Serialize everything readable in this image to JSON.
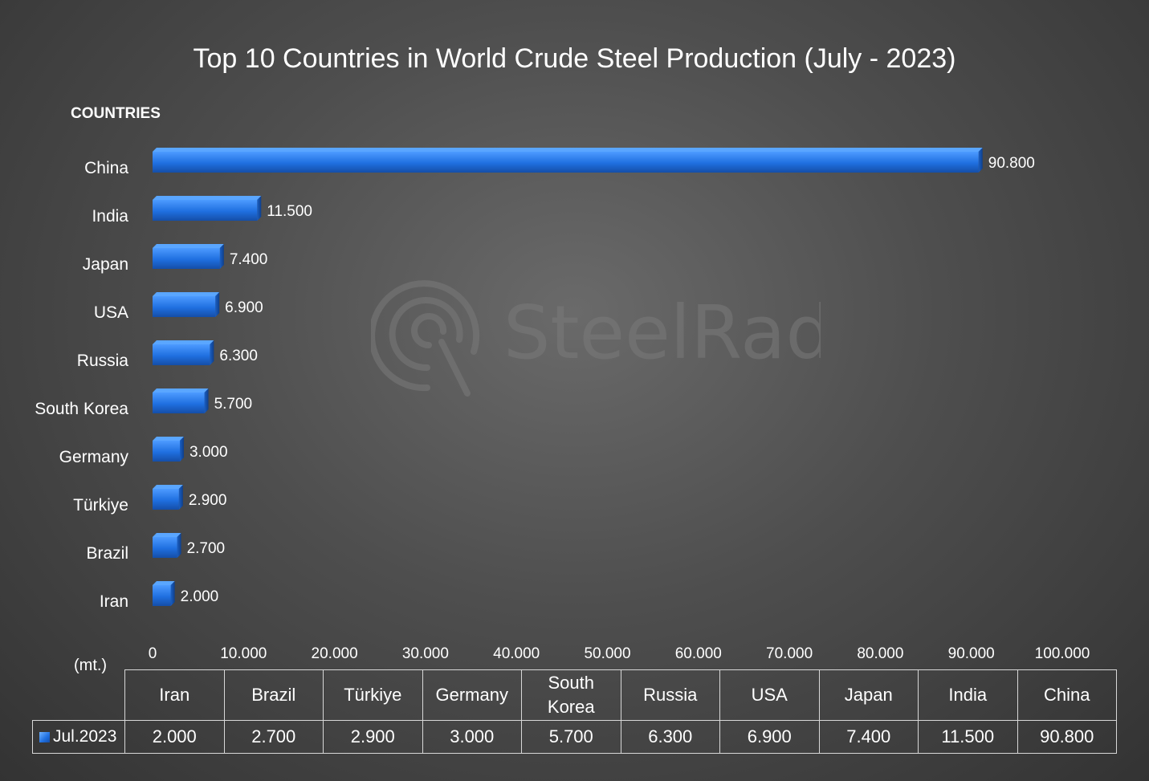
{
  "chart_data": {
    "type": "bar",
    "orientation": "horizontal",
    "title": "Top 10 Countries in World Crude Steel Production (July - 2023)",
    "ylabel": "COUNTRIES",
    "units_label": "(mt.)",
    "categories": [
      "China",
      "India",
      "Japan",
      "USA",
      "Russia",
      "South Korea",
      "Germany",
      "Türkiye",
      "Brazil",
      "Iran"
    ],
    "values": [
      90.8,
      11.5,
      7.4,
      6.9,
      6.3,
      5.7,
      3.0,
      2.9,
      2.7,
      2.0
    ],
    "data_labels": [
      "90.800",
      "11.500",
      "7.400",
      "6.900",
      "6.300",
      "5.700",
      "3.000",
      "2.900",
      "2.700",
      "2.000"
    ],
    "x_ticks": [
      0,
      10,
      20,
      30,
      40,
      50,
      60,
      70,
      80,
      90,
      100
    ],
    "x_tick_labels": [
      "0",
      "10.000",
      "20.000",
      "30.000",
      "40.000",
      "50.000",
      "60.000",
      "70.000",
      "80.000",
      "90.000",
      "100.000"
    ],
    "xlim": [
      0,
      100
    ],
    "grid": false,
    "bar_color": "#2a7ae2",
    "data_table": {
      "series_name": "Jul.2023",
      "columns": [
        "Iran",
        "Brazil",
        "Türkiye",
        "Germany",
        "South Korea",
        "Russia",
        "USA",
        "Japan",
        "India",
        "China"
      ],
      "values": [
        "2.000",
        "2.700",
        "2.900",
        "3.000",
        "5.700",
        "6.300",
        "6.900",
        "7.400",
        "11.500",
        "90.800"
      ]
    }
  },
  "watermark": {
    "brand": "SteelRadar",
    "logo_icon": "radar-logo-icon"
  }
}
